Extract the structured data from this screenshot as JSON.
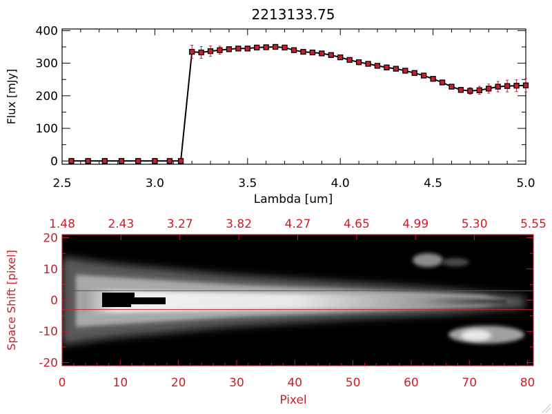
{
  "chart_data": [
    {
      "type": "line",
      "title": "2213133.75",
      "xlabel": "Lambda [um]",
      "ylabel": "Flux [mJy]",
      "xlim": [
        2.5,
        5.0
      ],
      "ylim": [
        -10,
        405
      ],
      "xticks": [
        "2.5",
        "3.0",
        "3.5",
        "4.0",
        "4.5",
        "5.0"
      ],
      "yticks": [
        "0",
        "100",
        "200",
        "300",
        "400"
      ],
      "grid": false,
      "line_color": "#000000",
      "marker_color": "#c8202a",
      "errorbar_color": "#c8202a",
      "series": [
        {
          "x": [
            2.55,
            2.64,
            2.73,
            2.82,
            2.91,
            3.0,
            3.08,
            3.14,
            3.2,
            3.25,
            3.3,
            3.35,
            3.4,
            3.45,
            3.5,
            3.55,
            3.6,
            3.65,
            3.7,
            3.75,
            3.8,
            3.85,
            3.9,
            3.95,
            4.0,
            4.05,
            4.1,
            4.15,
            4.2,
            4.25,
            4.3,
            4.35,
            4.4,
            4.45,
            4.5,
            4.55,
            4.6,
            4.65,
            4.7,
            4.75,
            4.8,
            4.85,
            4.9,
            4.95,
            5.0
          ],
          "y": [
            0,
            0,
            0,
            0,
            0,
            0,
            0,
            0,
            335,
            333,
            337,
            340,
            343,
            345,
            345,
            348,
            349,
            350,
            348,
            340,
            335,
            333,
            330,
            325,
            318,
            310,
            303,
            298,
            292,
            287,
            283,
            277,
            270,
            262,
            252,
            241,
            228,
            218,
            215,
            217,
            222,
            228,
            230,
            231,
            232
          ],
          "yerr": [
            0,
            0,
            0,
            0,
            0,
            0,
            0,
            0,
            20,
            18,
            16,
            12,
            8,
            6,
            5,
            5,
            5,
            5,
            5,
            5,
            5,
            5,
            5,
            5,
            5,
            5,
            5,
            5,
            5,
            5,
            5,
            5,
            5,
            5,
            6,
            6,
            7,
            8,
            10,
            12,
            14,
            16,
            18,
            18,
            20
          ]
        }
      ]
    },
    {
      "type": "heatmap",
      "xlabel": "Pixel",
      "ylabel": "Space Shift [pixel]",
      "xlim": [
        0,
        81
      ],
      "ylim": [
        -21,
        21
      ],
      "xticks": [
        "0",
        "10",
        "20",
        "30",
        "40",
        "50",
        "60",
        "70",
        "80"
      ],
      "yticks": [
        "-20",
        "-10",
        "0",
        "10",
        "20"
      ],
      "top_axis_ticks": [
        "1.48",
        "2.43",
        "3.27",
        "3.82",
        "4.27",
        "4.65",
        "4.99",
        "5.30",
        "5.55"
      ],
      "axis_color": "#c8202a",
      "extraction_lines": [
        3,
        -3
      ],
      "colormap": "grayscale"
    }
  ]
}
